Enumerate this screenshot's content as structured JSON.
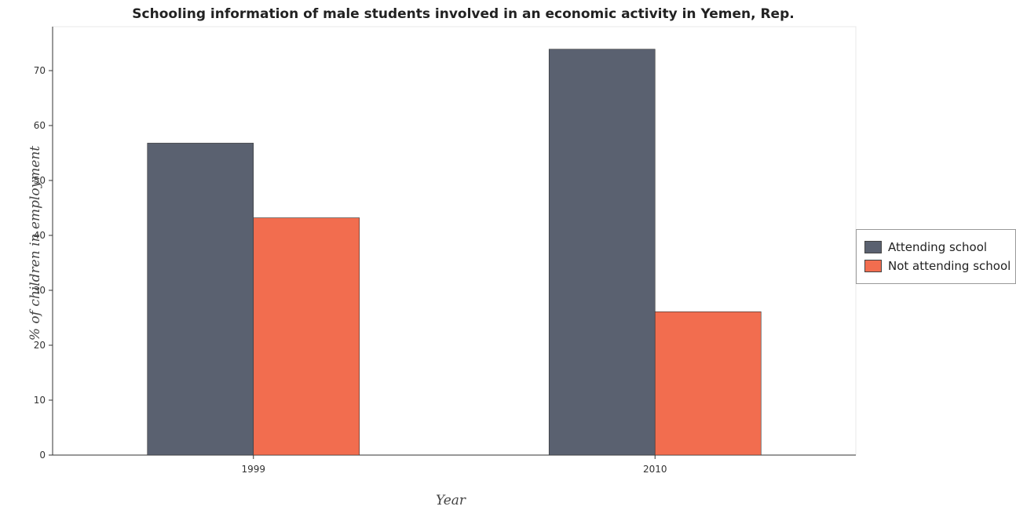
{
  "chart_data": {
    "type": "bar",
    "title": "Schooling information of male students involved in an economic activity in Yemen, Rep.",
    "xlabel": "Year",
    "ylabel": "% of children in employment",
    "categories": [
      "1999",
      "2010"
    ],
    "series": [
      {
        "name": "Attending school",
        "values": [
          56.8,
          73.9
        ],
        "color": "#5a6170"
      },
      {
        "name": "Not attending school",
        "values": [
          43.2,
          26.1
        ],
        "color": "#f26d4f"
      }
    ],
    "ylim": [
      0,
      78
    ],
    "yticks": [
      0,
      10,
      20,
      30,
      40,
      50,
      60,
      70
    ],
    "grid": false,
    "legend": "right"
  }
}
